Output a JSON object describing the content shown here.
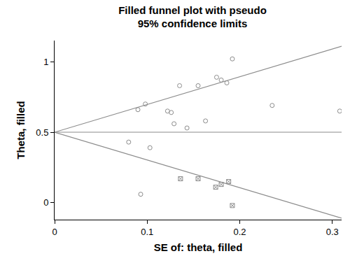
{
  "chart_data": {
    "type": "scatter",
    "title": "Filled funnel plot with pseudo\n95% confidence limits",
    "x_label": "SE of: theta, filled",
    "y_label": "Theta, filled",
    "xlim": [
      0,
      0.31
    ],
    "ylim": [
      -0.12,
      1.15
    ],
    "xticks": [
      0,
      0.1,
      0.2,
      0.3
    ],
    "yticks": [
      0,
      0.5,
      1
    ],
    "grid": false,
    "series": [
      {
        "type": "scatter",
        "marker": "circle-open",
        "color": "#8c8c8c",
        "x": [
          0.08,
          0.09,
          0.098,
          0.093,
          0.103,
          0.122,
          0.126,
          0.129,
          0.135,
          0.143,
          0.155,
          0.163,
          0.175,
          0.18,
          0.186,
          0.192,
          0.235,
          0.308
        ],
        "values": [
          0.43,
          0.66,
          0.7,
          0.06,
          0.39,
          0.65,
          0.64,
          0.56,
          0.83,
          0.53,
          0.83,
          0.58,
          0.89,
          0.87,
          0.85,
          1.02,
          0.69,
          0.65
        ]
      },
      {
        "type": "scatter",
        "marker": "square-x-open",
        "color": "#8c8c8c",
        "x": [
          0.136,
          0.155,
          0.174,
          0.18,
          0.188,
          0.192
        ],
        "values": [
          0.17,
          0.17,
          0.11,
          0.13,
          0.15,
          -0.02
        ]
      },
      {
        "type": "line",
        "line_style": "solid",
        "color": "#8c8c8c",
        "x": [
          0,
          0.31
        ],
        "values": [
          0.5,
          1.11
        ]
      },
      {
        "type": "line",
        "line_style": "solid",
        "color": "#8c8c8c",
        "x": [
          0,
          0.31
        ],
        "values": [
          0.5,
          0.5
        ]
      },
      {
        "type": "line",
        "line_style": "solid",
        "color": "#8c8c8c",
        "x": [
          0,
          0.31
        ],
        "values": [
          0.5,
          -0.11
        ]
      }
    ]
  }
}
